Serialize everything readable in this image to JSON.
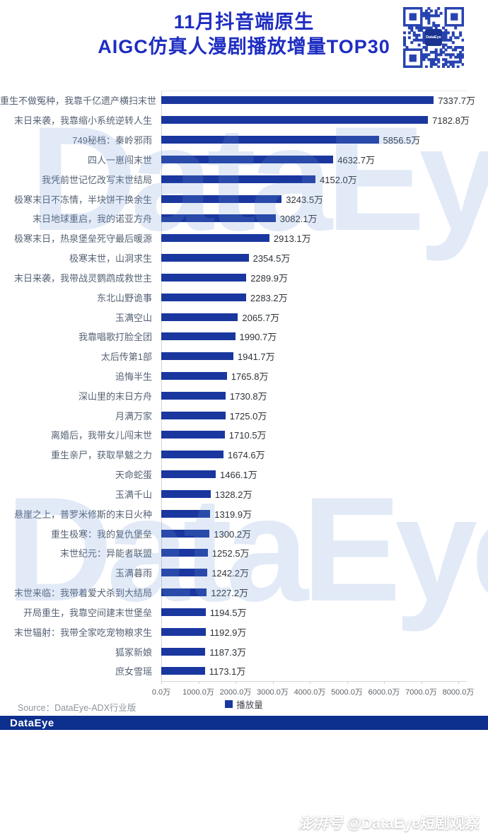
{
  "title": {
    "line1": "11月抖音端原生",
    "line2": "AIGC仿真人漫剧播放增量TOP30"
  },
  "qr": {
    "label": "DataEye"
  },
  "chart_data": {
    "type": "bar",
    "orientation": "horizontal",
    "title": "11月抖音端原生AIGC仿真人漫剧播放增量TOP30",
    "xlabel": "播放增量",
    "unit": "万",
    "xlim": [
      0,
      8000
    ],
    "grid": false,
    "legend_position": "bottom",
    "x_ticks": [
      "0.0万",
      "1000.0万",
      "2000.0万",
      "3000.0万",
      "4000.0万",
      "5000.0万",
      "6000.0万",
      "7000.0万",
      "8000.0万"
    ],
    "series_name": "播放量",
    "items": [
      {
        "label": "重生不做冤种，我靠千亿遗产横扫末世",
        "value": 7337.7
      },
      {
        "label": "末日来袭，我靠缩小系统逆转人生",
        "value": 7182.8
      },
      {
        "label": "749秘档：秦岭邪雨",
        "value": 5856.5
      },
      {
        "label": "四人一崽闯末世",
        "value": 4632.7
      },
      {
        "label": "我凭前世记忆改写末世结局",
        "value": 4152.0
      },
      {
        "label": "极寒末日不冻情，半块饼干换余生",
        "value": 3243.5
      },
      {
        "label": "末日地球重启，我的诺亚方舟",
        "value": 3082.1
      },
      {
        "label": "极寒末日，热泉堡垒死守最后暖源",
        "value": 2913.1
      },
      {
        "label": "极寒末世，山洞求生",
        "value": 2354.5
      },
      {
        "label": "末日来袭，我带战灵鹦鹉成救世主",
        "value": 2289.9
      },
      {
        "label": "东北山野诡事",
        "value": 2283.2
      },
      {
        "label": "玉满空山",
        "value": 2065.7
      },
      {
        "label": "我靠唱歌打脸全团",
        "value": 1990.7
      },
      {
        "label": "太后传第1部",
        "value": 1941.7
      },
      {
        "label": "追悔半生",
        "value": 1765.8
      },
      {
        "label": "深山里的末日方舟",
        "value": 1730.8
      },
      {
        "label": "月满万家",
        "value": 1725.0
      },
      {
        "label": "离婚后，我带女儿闯末世",
        "value": 1710.5
      },
      {
        "label": "重生亲尸，获取旱魃之力",
        "value": 1674.6
      },
      {
        "label": "天命蛇蛋",
        "value": 1466.1
      },
      {
        "label": "玉满千山",
        "value": 1328.2
      },
      {
        "label": "悬崖之上，普罗米修斯的末日火种",
        "value": 1319.9
      },
      {
        "label": "重生极寒：我的复仇堡垒",
        "value": 1300.2
      },
      {
        "label": "末世纪元：异能者联盟",
        "value": 1252.5
      },
      {
        "label": "玉满暮雨",
        "value": 1242.2
      },
      {
        "label": "末世来临：我带着爱犬杀到大结局",
        "value": 1227.2
      },
      {
        "label": "开局重生，我靠空间建末世堡垒",
        "value": 1194.5
      },
      {
        "label": "末世辐射：我带全家吃宠物粮求生",
        "value": 1192.9
      },
      {
        "label": "狐冢新娘",
        "value": 1187.3
      },
      {
        "label": "庶女雪瑶",
        "value": 1173.1
      }
    ]
  },
  "legend": {
    "label": "播放量"
  },
  "source": {
    "text": "Source：DataEye-ADX行业版"
  },
  "watermark": {
    "text": "DataEye"
  },
  "footer": {
    "logo": "DataEye"
  },
  "stamp": {
    "logo": "澎湃号",
    "text": "@DataEye短剧观察"
  },
  "colors": {
    "title": "#1e2dc2",
    "bar": "#1a379f",
    "banner": "#0d2f8d",
    "qr": "#2743b0",
    "value_label": "#2e3338",
    "category_label": "#566274"
  }
}
